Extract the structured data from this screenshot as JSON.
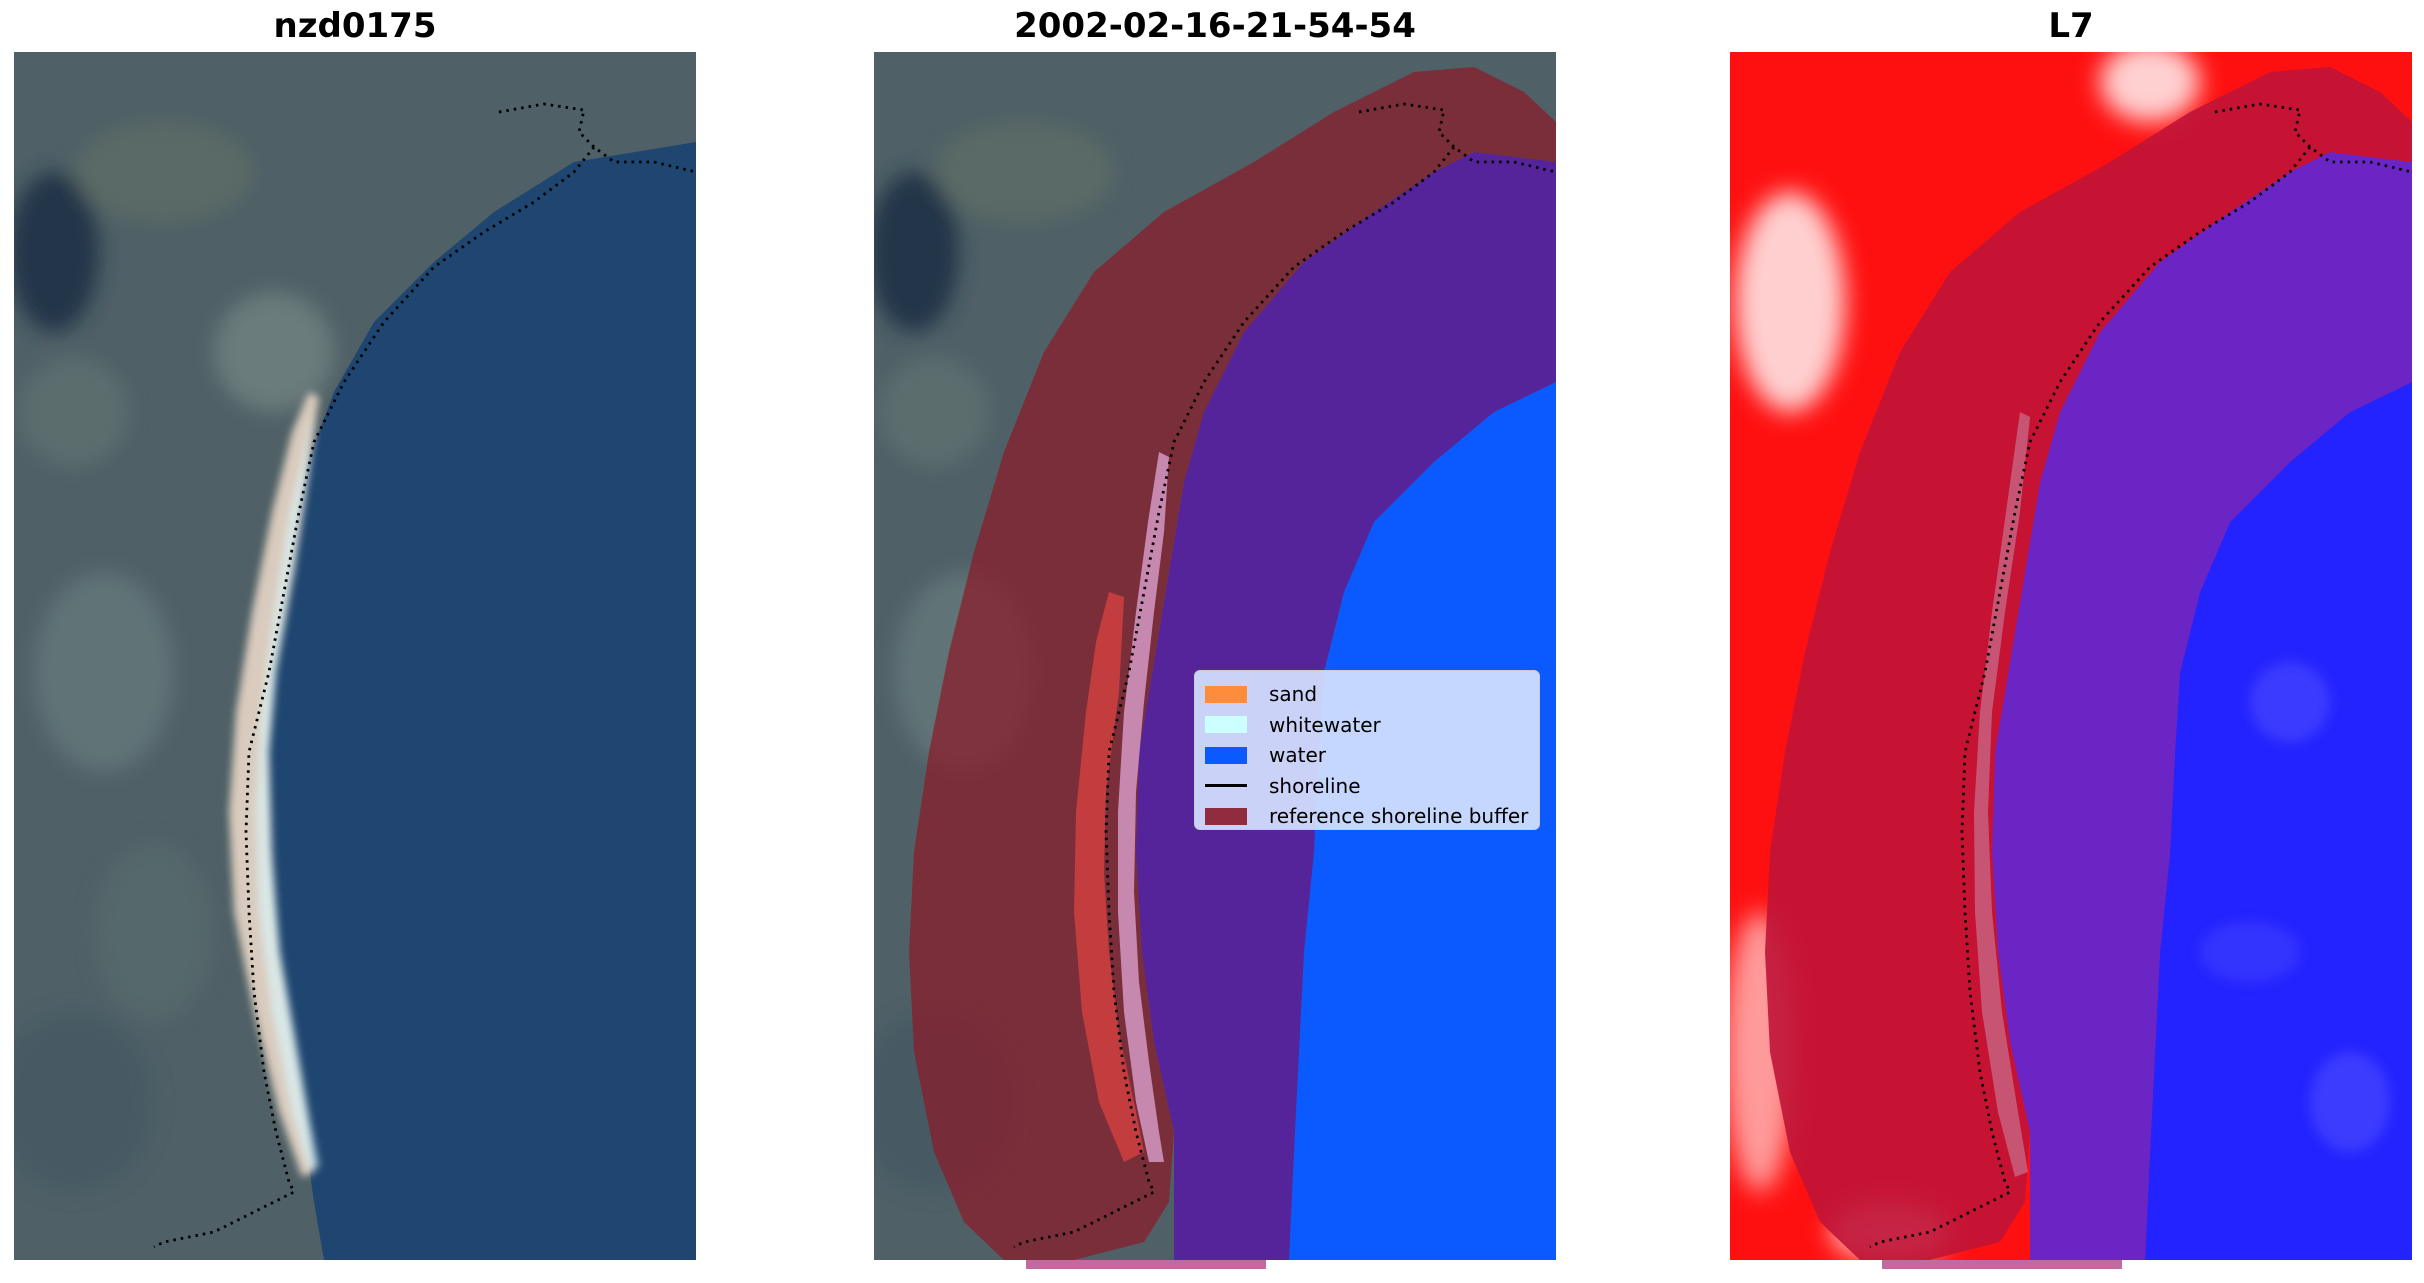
{
  "panels": [
    {
      "title": "nzd0175",
      "view": "rgb-image"
    },
    {
      "title": "2002-02-16-21-54-54",
      "view": "classified-image"
    },
    {
      "title": "L7",
      "view": "index-image"
    }
  ],
  "legend": {
    "items": [
      {
        "label": "sand",
        "kind": "patch",
        "color": "#ff8c3a"
      },
      {
        "label": "whitewater",
        "kind": "patch",
        "color": "#ccffff"
      },
      {
        "label": "water",
        "kind": "patch",
        "color": "#0a5aff"
      },
      {
        "label": "shoreline",
        "kind": "line",
        "color": "#000000"
      },
      {
        "label": "reference shoreline buffer",
        "kind": "patch",
        "color": "#8b1a2a"
      }
    ]
  },
  "colors": {
    "land": "#4f6066",
    "ocean": "#1f4670",
    "beach": "#e6d3c2",
    "surf": "#d8f4ff",
    "water_class": "#0a5aff",
    "water_buffer_overlay": "#55249a",
    "buffer": "#8b1a2a",
    "index_land": "#ff1010",
    "index_water": "#2323ff",
    "index_buffer_land": "#c01437",
    "index_buffer_water": "#6a25c4"
  }
}
